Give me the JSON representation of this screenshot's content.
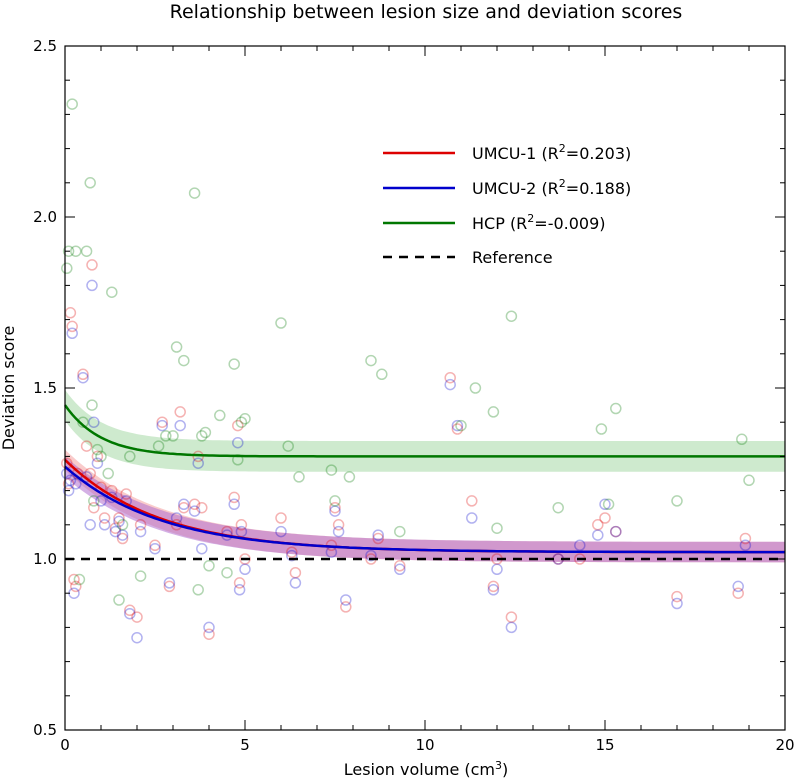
{
  "chart_data": {
    "type": "scatter",
    "title": "Relationship between lesion size and deviation scores",
    "xlabel": "Lesion volume (cm",
    "xlabel_sup": "3",
    "xlabel_end": ")",
    "ylabel": "Deviation score",
    "xlim": [
      0,
      20
    ],
    "ylim": [
      0.5,
      2.5
    ],
    "xticks": [
      0,
      5,
      10,
      15,
      20
    ],
    "xtick_labels": [
      "0",
      "5",
      "10",
      "15",
      "20"
    ],
    "yticks": [
      0.5,
      1.0,
      1.5,
      2.0,
      2.5
    ],
    "ytick_labels": [
      "0.5",
      "1.0",
      "1.5",
      "2.0",
      "2.5"
    ],
    "legend_position": "upper-right",
    "reference_y": 1.0,
    "series": [
      {
        "name": "UMCU-1",
        "label_prefix": "UMCU-1 (R",
        "label_sup": "2",
        "label_suffix": "=0.203)",
        "color": "#dd0000",
        "fill_color": "#f4a0a0",
        "curve": {
          "asymptote": 1.02,
          "amplitude": 0.27,
          "decay": 0.38,
          "band": 0.03
        },
        "points": [
          [
            0.05,
            1.28
          ],
          [
            0.1,
            1.22
          ],
          [
            0.15,
            1.72
          ],
          [
            0.2,
            1.68
          ],
          [
            0.25,
            0.94
          ],
          [
            0.3,
            0.92
          ],
          [
            0.35,
            1.25
          ],
          [
            0.5,
            1.54
          ],
          [
            0.6,
            1.33
          ],
          [
            0.7,
            1.25
          ],
          [
            0.75,
            1.86
          ],
          [
            0.8,
            1.15
          ],
          [
            0.9,
            1.3
          ],
          [
            1.0,
            1.21
          ],
          [
            1.1,
            1.12
          ],
          [
            1.3,
            1.2
          ],
          [
            1.4,
            1.09
          ],
          [
            1.5,
            1.12
          ],
          [
            1.6,
            1.06
          ],
          [
            1.7,
            1.19
          ],
          [
            1.8,
            0.85
          ],
          [
            2.0,
            0.83
          ],
          [
            2.1,
            1.1
          ],
          [
            2.5,
            1.04
          ],
          [
            2.7,
            1.4
          ],
          [
            2.9,
            0.92
          ],
          [
            3.1,
            1.1
          ],
          [
            3.2,
            1.43
          ],
          [
            3.3,
            1.15
          ],
          [
            3.6,
            1.16
          ],
          [
            3.7,
            1.3
          ],
          [
            3.8,
            1.15
          ],
          [
            4.0,
            0.78
          ],
          [
            4.5,
            1.08
          ],
          [
            4.7,
            1.18
          ],
          [
            4.8,
            1.39
          ],
          [
            4.85,
            0.93
          ],
          [
            4.9,
            1.1
          ],
          [
            5.0,
            1.0
          ],
          [
            6.0,
            1.12
          ],
          [
            6.3,
            1.02
          ],
          [
            6.4,
            0.96
          ],
          [
            7.4,
            1.04
          ],
          [
            7.5,
            1.15
          ],
          [
            7.6,
            1.1
          ],
          [
            7.8,
            0.86
          ],
          [
            8.5,
            1.0
          ],
          [
            8.7,
            1.06
          ],
          [
            9.3,
            0.98
          ],
          [
            10.7,
            1.53
          ],
          [
            10.9,
            1.38
          ],
          [
            11.3,
            1.17
          ],
          [
            11.9,
            0.92
          ],
          [
            12.0,
            1.0
          ],
          [
            12.4,
            0.83
          ],
          [
            13.7,
            1.0
          ],
          [
            14.3,
            1.0
          ],
          [
            14.8,
            1.1
          ],
          [
            15.0,
            1.12
          ],
          [
            15.3,
            1.08
          ],
          [
            17.0,
            0.89
          ],
          [
            18.7,
            0.9
          ],
          [
            18.9,
            1.06
          ]
        ]
      },
      {
        "name": "UMCU-2",
        "label_prefix": "UMCU-2 (R",
        "label_sup": "2",
        "label_suffix": "=0.188)",
        "color": "#0000cc",
        "fill_color": "#b070d0",
        "curve": {
          "asymptote": 1.02,
          "amplitude": 0.25,
          "decay": 0.37,
          "band": 0.03
        },
        "points": [
          [
            0.05,
            1.25
          ],
          [
            0.1,
            1.2
          ],
          [
            0.15,
            1.23
          ],
          [
            0.2,
            1.66
          ],
          [
            0.25,
            0.9
          ],
          [
            0.3,
            1.22
          ],
          [
            0.5,
            1.53
          ],
          [
            0.6,
            1.24
          ],
          [
            0.7,
            1.1
          ],
          [
            0.75,
            1.8
          ],
          [
            0.8,
            1.4
          ],
          [
            0.9,
            1.28
          ],
          [
            1.0,
            1.17
          ],
          [
            1.1,
            1.1
          ],
          [
            1.3,
            1.18
          ],
          [
            1.4,
            1.08
          ],
          [
            1.5,
            1.11
          ],
          [
            1.6,
            1.07
          ],
          [
            1.7,
            1.17
          ],
          [
            1.8,
            0.84
          ],
          [
            2.0,
            0.77
          ],
          [
            2.1,
            1.08
          ],
          [
            2.5,
            1.03
          ],
          [
            2.7,
            1.39
          ],
          [
            2.9,
            0.93
          ],
          [
            3.1,
            1.12
          ],
          [
            3.2,
            1.39
          ],
          [
            3.3,
            1.16
          ],
          [
            3.6,
            1.14
          ],
          [
            3.7,
            1.28
          ],
          [
            3.8,
            1.03
          ],
          [
            4.0,
            0.8
          ],
          [
            4.5,
            1.07
          ],
          [
            4.7,
            1.16
          ],
          [
            4.8,
            1.34
          ],
          [
            4.85,
            0.91
          ],
          [
            4.9,
            1.08
          ],
          [
            5.0,
            0.97
          ],
          [
            6.0,
            1.08
          ],
          [
            6.3,
            1.01
          ],
          [
            6.4,
            0.93
          ],
          [
            7.4,
            1.02
          ],
          [
            7.5,
            1.14
          ],
          [
            7.6,
            1.08
          ],
          [
            7.8,
            0.88
          ],
          [
            8.5,
            1.01
          ],
          [
            8.7,
            1.07
          ],
          [
            9.3,
            0.97
          ],
          [
            10.7,
            1.51
          ],
          [
            10.9,
            1.39
          ],
          [
            11.3,
            1.12
          ],
          [
            11.9,
            0.91
          ],
          [
            12.0,
            0.97
          ],
          [
            12.4,
            0.8
          ],
          [
            13.7,
            1.0
          ],
          [
            14.3,
            1.04
          ],
          [
            14.8,
            1.07
          ],
          [
            15.0,
            1.16
          ],
          [
            15.3,
            1.08
          ],
          [
            17.0,
            0.87
          ],
          [
            18.7,
            0.92
          ],
          [
            18.9,
            1.04
          ]
        ]
      },
      {
        "name": "HCP",
        "label_prefix": "HCP (R",
        "label_sup": "2",
        "label_suffix": "=-0.009)",
        "color": "#007700",
        "fill_color": "#a6d8a6",
        "curve": {
          "asymptote": 1.3,
          "amplitude": 0.15,
          "decay": 1.0,
          "band": 0.045
        },
        "points": [
          [
            0.05,
            1.85
          ],
          [
            0.1,
            1.9
          ],
          [
            0.2,
            2.33
          ],
          [
            0.3,
            1.9
          ],
          [
            0.4,
            0.94
          ],
          [
            0.5,
            1.4
          ],
          [
            0.6,
            1.9
          ],
          [
            0.7,
            2.1
          ],
          [
            0.75,
            1.45
          ],
          [
            0.8,
            1.17
          ],
          [
            0.9,
            1.32
          ],
          [
            1.0,
            1.3
          ],
          [
            1.2,
            1.25
          ],
          [
            1.3,
            1.78
          ],
          [
            1.5,
            0.88
          ],
          [
            1.6,
            1.1
          ],
          [
            1.8,
            1.3
          ],
          [
            2.1,
            0.95
          ],
          [
            2.6,
            1.33
          ],
          [
            2.8,
            1.36
          ],
          [
            3.0,
            1.36
          ],
          [
            3.1,
            1.62
          ],
          [
            3.3,
            1.58
          ],
          [
            3.6,
            2.07
          ],
          [
            3.7,
            0.91
          ],
          [
            3.8,
            1.36
          ],
          [
            3.9,
            1.37
          ],
          [
            4.0,
            0.98
          ],
          [
            4.3,
            1.42
          ],
          [
            4.5,
            0.96
          ],
          [
            4.7,
            1.57
          ],
          [
            4.8,
            1.29
          ],
          [
            4.9,
            1.4
          ],
          [
            5.0,
            1.41
          ],
          [
            6.0,
            1.69
          ],
          [
            6.2,
            1.33
          ],
          [
            6.5,
            1.24
          ],
          [
            7.4,
            1.26
          ],
          [
            7.5,
            1.17
          ],
          [
            7.9,
            1.24
          ],
          [
            8.5,
            1.58
          ],
          [
            8.8,
            1.54
          ],
          [
            9.3,
            1.08
          ],
          [
            11.0,
            1.39
          ],
          [
            11.4,
            1.5
          ],
          [
            11.9,
            1.43
          ],
          [
            12.0,
            1.09
          ],
          [
            12.4,
            1.71
          ],
          [
            13.7,
            1.15
          ],
          [
            14.9,
            1.38
          ],
          [
            15.1,
            1.16
          ],
          [
            15.3,
            1.44
          ],
          [
            17.0,
            1.17
          ],
          [
            18.8,
            1.35
          ],
          [
            19.0,
            1.23
          ]
        ]
      }
    ],
    "reference": {
      "label": "Reference",
      "color": "#000000"
    }
  }
}
